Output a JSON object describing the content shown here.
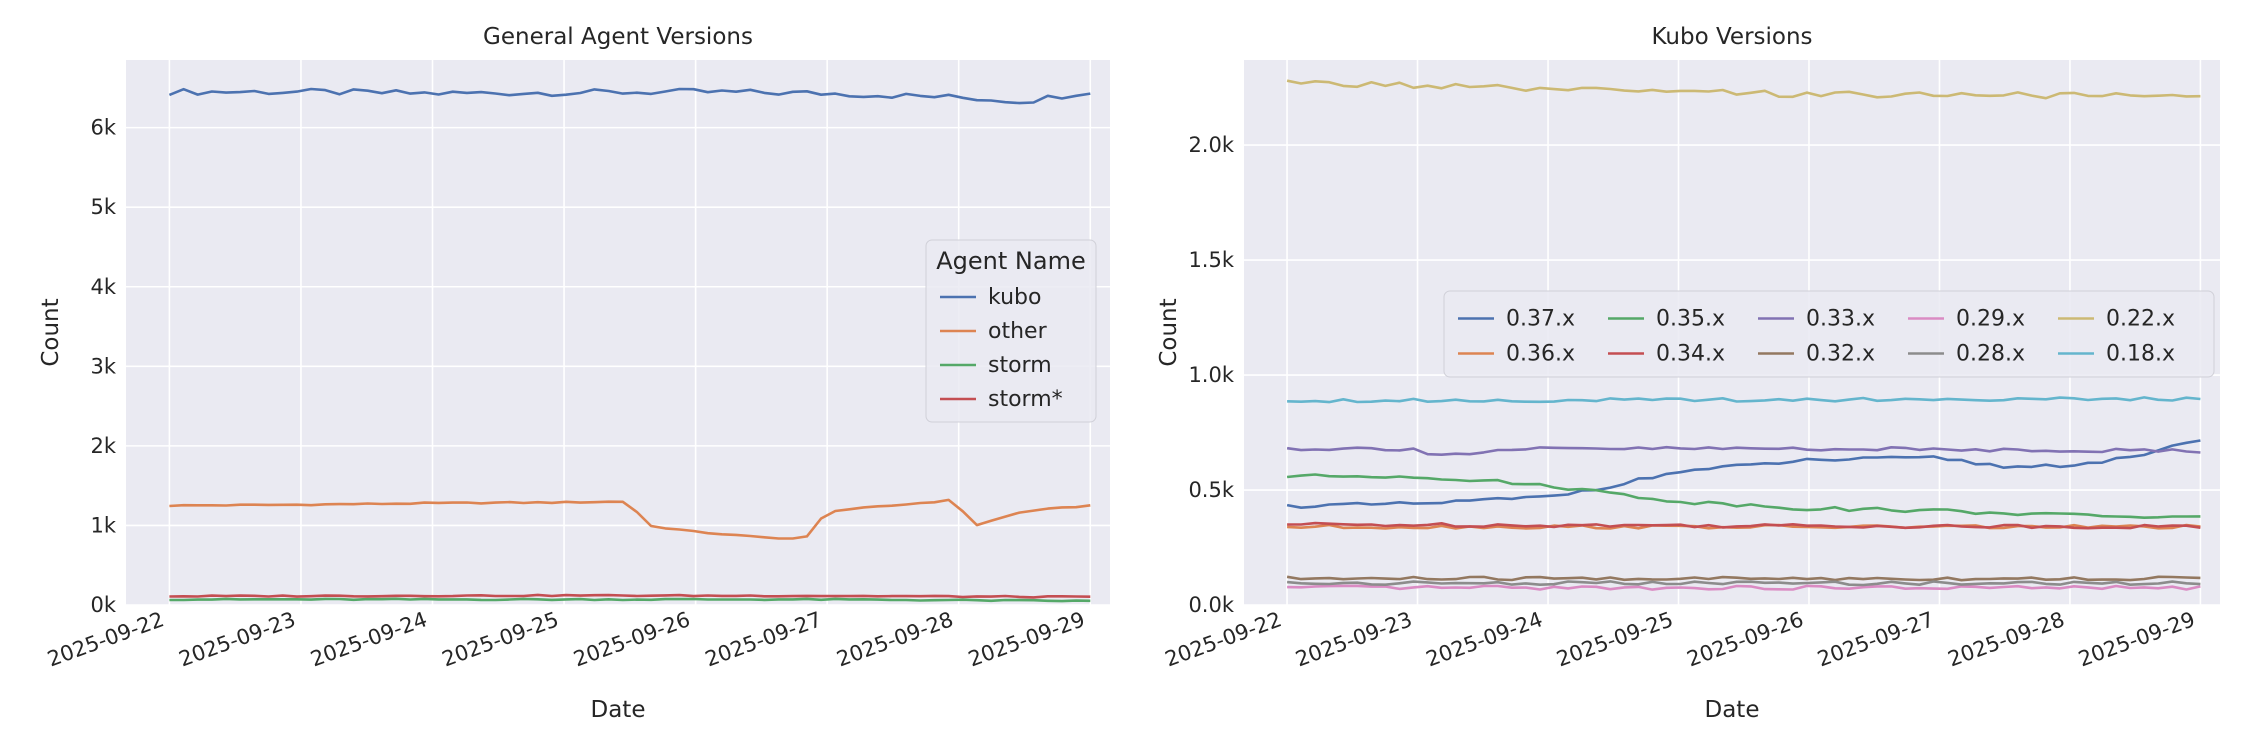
{
  "chart_data": [
    {
      "type": "line",
      "title": "General Agent Versions",
      "xlabel": "Date",
      "ylabel": "Count",
      "x_range": [
        "2025-09-22",
        "2025-09-29"
      ],
      "ylim": [
        0,
        6850
      ],
      "y_ticks": [
        0,
        1000,
        2000,
        3000,
        4000,
        5000,
        6000
      ],
      "y_tick_labels": [
        "0k",
        "1k",
        "2k",
        "3k",
        "4k",
        "5k",
        "6k"
      ],
      "x_ticks": [
        "2025-09-22",
        "2025-09-23",
        "2025-09-24",
        "2025-09-25",
        "2025-09-26",
        "2025-09-27",
        "2025-09-28",
        "2025-09-29"
      ],
      "grid": true,
      "legend": {
        "title": "Agent Name",
        "placement": "center-right",
        "columns": 1
      },
      "series": [
        {
          "name": "kubo",
          "color": "#4c72b0",
          "x": [
            "2025-09-22",
            "2025-09-23",
            "2025-09-24",
            "2025-09-25",
            "2025-09-26",
            "2025-09-27",
            "2025-09-28",
            "2025-09-28 12:00",
            "2025-09-29"
          ],
          "values": [
            6450,
            6450,
            6430,
            6440,
            6450,
            6430,
            6380,
            6330,
            6460
          ]
        },
        {
          "name": "other",
          "color": "#dd8452",
          "x": [
            "2025-09-22",
            "2025-09-23",
            "2025-09-24",
            "2025-09-25",
            "2025-09-25 12:00",
            "2025-09-25 15:00",
            "2025-09-26",
            "2025-09-26 12:00",
            "2025-09-26 20:00",
            "2025-09-27",
            "2025-09-27 12:00",
            "2025-09-27 23:00",
            "2025-09-28 03:00",
            "2025-09-28 12:00",
            "2025-09-29"
          ],
          "values": [
            1250,
            1260,
            1280,
            1290,
            1300,
            1000,
            920,
            850,
            830,
            1180,
            1250,
            1320,
            1000,
            1180,
            1250
          ]
        },
        {
          "name": "storm",
          "color": "#55a868",
          "x": [
            "2025-09-22",
            "2025-09-25",
            "2025-09-27",
            "2025-09-29"
          ],
          "values": [
            70,
            70,
            70,
            50
          ]
        },
        {
          "name": "storm*",
          "color": "#c44e52",
          "x": [
            "2025-09-22",
            "2025-09-25",
            "2025-09-27",
            "2025-09-29"
          ],
          "values": [
            110,
            120,
            115,
            100
          ]
        }
      ]
    },
    {
      "type": "line",
      "title": "Kubo Versions",
      "xlabel": "Date",
      "ylabel": "Count",
      "x_range": [
        "2025-09-22",
        "2025-09-29"
      ],
      "ylim": [
        0,
        2370
      ],
      "y_ticks": [
        0,
        500,
        1000,
        1500,
        2000
      ],
      "y_tick_labels": [
        "0.0k",
        "0.5k",
        "1.0k",
        "1.5k",
        "2.0k"
      ],
      "x_ticks": [
        "2025-09-22",
        "2025-09-23",
        "2025-09-24",
        "2025-09-25",
        "2025-09-26",
        "2025-09-27",
        "2025-09-28",
        "2025-09-29"
      ],
      "grid": true,
      "legend": {
        "title": "",
        "placement": "center-right",
        "columns": 5
      },
      "series": [
        {
          "name": "0.37.x",
          "color": "#4c72b0",
          "x": [
            "2025-09-22",
            "2025-09-23",
            "2025-09-24",
            "2025-09-24 12:00",
            "2025-09-25",
            "2025-09-26",
            "2025-09-27",
            "2025-09-27 12:00",
            "2025-09-28",
            "2025-09-28 12:00",
            "2025-09-29"
          ],
          "values": [
            430,
            440,
            470,
            520,
            580,
            630,
            640,
            600,
            610,
            640,
            720
          ]
        },
        {
          "name": "0.36.x",
          "color": "#dd8452",
          "x": [
            "2025-09-22",
            "2025-09-29"
          ],
          "values": [
            340,
            340
          ]
        },
        {
          "name": "0.35.x",
          "color": "#55a868",
          "x": [
            "2025-09-22",
            "2025-09-23",
            "2025-09-24",
            "2025-09-25",
            "2025-09-26",
            "2025-09-27",
            "2025-09-28",
            "2025-09-29"
          ],
          "values": [
            560,
            560,
            520,
            450,
            420,
            410,
            390,
            380
          ]
        },
        {
          "name": "0.34.x",
          "color": "#c44e52",
          "x": [
            "2025-09-22",
            "2025-09-29"
          ],
          "values": [
            350,
            340
          ]
        },
        {
          "name": "0.33.x",
          "color": "#8172b3",
          "x": [
            "2025-09-22",
            "2025-09-23",
            "2025-09-23 03:00",
            "2025-09-24",
            "2025-09-26",
            "2025-09-29"
          ],
          "values": [
            680,
            680,
            650,
            680,
            680,
            670
          ]
        },
        {
          "name": "0.32.x",
          "color": "#937860",
          "x": [
            "2025-09-22",
            "2025-09-29"
          ],
          "values": [
            115,
            115
          ]
        },
        {
          "name": "0.29.x",
          "color": "#da8bc3",
          "x": [
            "2025-09-22",
            "2025-09-29"
          ],
          "values": [
            75,
            75
          ]
        },
        {
          "name": "0.28.x",
          "color": "#8c8c8c",
          "x": [
            "2025-09-22",
            "2025-09-29"
          ],
          "values": [
            95,
            95
          ]
        },
        {
          "name": "0.22.x",
          "color": "#ccb974",
          "x": [
            "2025-09-22",
            "2025-09-23",
            "2025-09-24",
            "2025-09-25",
            "2025-09-26",
            "2025-09-27",
            "2025-09-28",
            "2025-09-29"
          ],
          "values": [
            2270,
            2260,
            2240,
            2230,
            2220,
            2220,
            2215,
            2210
          ]
        },
        {
          "name": "0.18.x",
          "color": "#64b5cd",
          "x": [
            "2025-09-22",
            "2025-09-24",
            "2025-09-27",
            "2025-09-29"
          ],
          "values": [
            890,
            890,
            895,
            895
          ]
        }
      ]
    }
  ]
}
